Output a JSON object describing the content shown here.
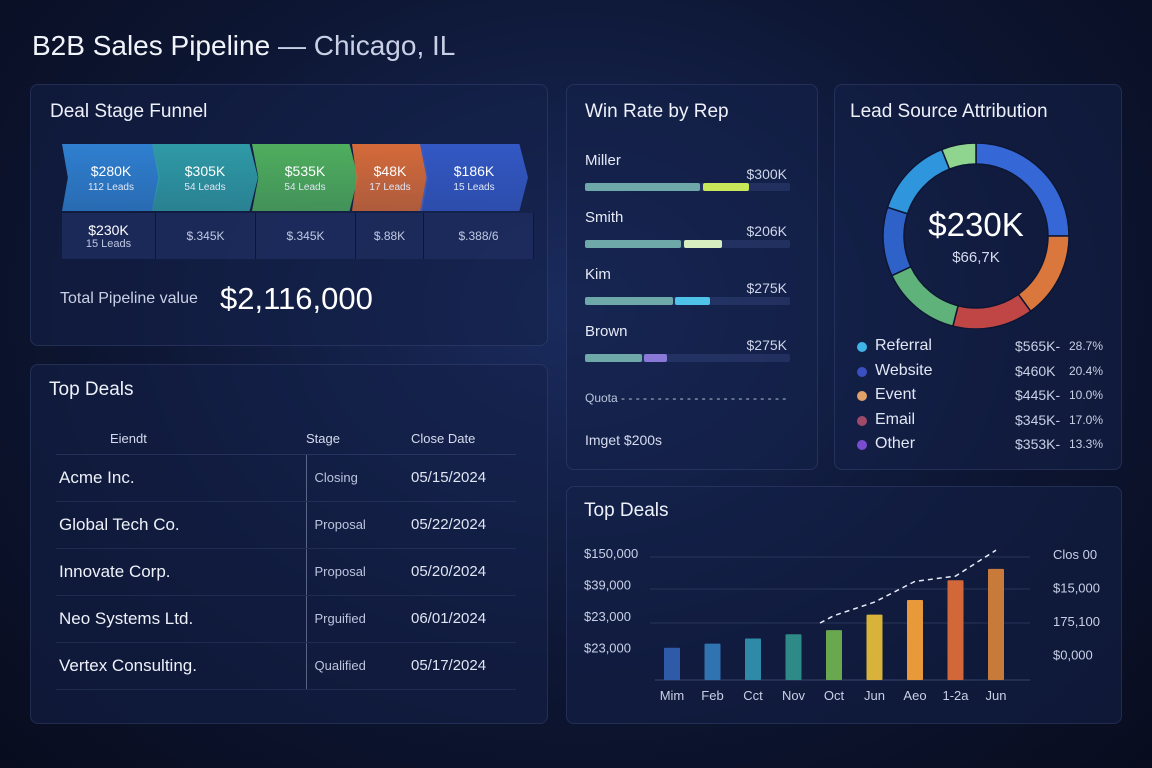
{
  "header": {
    "title": "B2B Sales Pipeline",
    "location": "— Chicago, IL"
  },
  "funnel": {
    "title": "Deal Stage Funnel",
    "stages": [
      {
        "value": "$280K",
        "leads": "112 Leads",
        "color": "#2f7fd0"
      },
      {
        "value": "$305K",
        "leads": "54 Leads",
        "color": "#2f9aa6"
      },
      {
        "value": "$535K",
        "leads": "54 Leads",
        "color": "#4fae5e"
      },
      {
        "value": "$48K",
        "leads": "17 Leads",
        "color": "#d46a3a"
      },
      {
        "value": "$186K",
        "leads": "15 Leads",
        "color": "#3358c4"
      }
    ],
    "row2": [
      {
        "value": "$230K",
        "leads": "15 Leads"
      },
      {
        "value": "$.345K"
      },
      {
        "value": "$.345K"
      },
      {
        "value": "$.88K"
      },
      {
        "value": "$.388/6"
      }
    ],
    "total_label": "Total Pipeline value",
    "total_value": "$2,116,000"
  },
  "winrate": {
    "title": "Win Rate by Rep",
    "reps": [
      {
        "name": "Miller",
        "amount": "$300K",
        "fill_pct": 80,
        "color": "#c8e85a"
      },
      {
        "name": "Smith",
        "amount": "$206K",
        "fill_pct": 67,
        "color": "#d6eec0"
      },
      {
        "name": "Kim",
        "amount": "$275K",
        "fill_pct": 61,
        "color": "#4ec2e8"
      },
      {
        "name": "Brown",
        "amount": "$275K",
        "fill_pct": 40,
        "color": "#8a78d8"
      }
    ],
    "quota_label": "Quota",
    "target_label": "Imget $200s"
  },
  "lead_source": {
    "title": "Lead Source Attribution",
    "center_value": "$230K",
    "center_sub": "$66,7K",
    "segments": [
      {
        "share": 25,
        "color": "#3567d6"
      },
      {
        "share": 15,
        "color": "#d9773c"
      },
      {
        "share": 14,
        "color": "#c04545"
      },
      {
        "share": 14,
        "color": "#5fb37a"
      },
      {
        "share": 12,
        "color": "#2e62c8"
      },
      {
        "share": 14,
        "color": "#2f95dd"
      },
      {
        "share": 6,
        "color": "#8fd48f"
      }
    ],
    "legend": [
      {
        "name": "Referral",
        "value": "$565K-",
        "pct": "28.7%",
        "color": "#3fb2e8"
      },
      {
        "name": "Website",
        "value": "$460K",
        "pct": "20.4%",
        "color": "#3a4fc0"
      },
      {
        "name": "Event",
        "value": "$445K-",
        "pct": "10.0%",
        "color": "#e0a06a"
      },
      {
        "name": "Email",
        "value": "$345K-",
        "pct": "17.0%",
        "color": "#a04a6a"
      },
      {
        "name": "Other",
        "value": "$353K-",
        "pct": "13.3%",
        "color": "#7a4cd0"
      }
    ]
  },
  "top_deals": {
    "title": "Top Deals",
    "columns": [
      "Eiendt",
      "Stage",
      "Close Date"
    ],
    "rows": [
      [
        "Acme Inc.",
        "Closing",
        "05/15/2024"
      ],
      [
        "Global Tech Co.",
        "Proposal",
        "05/22/2024"
      ],
      [
        "Innovate Corp.",
        "Proposal",
        "05/20/2024"
      ],
      [
        "Neo Systems Ltd.",
        "Prguified",
        "06/01/2024"
      ],
      [
        "Vertex Consulting.",
        "Qualified",
        "05/17/2024"
      ]
    ]
  },
  "chart_data": {
    "type": "bar",
    "title": "Top Deals",
    "categories": [
      "Mim",
      "Feb",
      "Cct",
      "Nov",
      "Oct",
      "Jun",
      "Aeo",
      "1-2a",
      "Jun"
    ],
    "values": [
      31,
      35,
      40,
      44,
      48,
      63,
      77,
      96,
      107
    ],
    "line": [
      null,
      null,
      null,
      null,
      62,
      75,
      95,
      100,
      125
    ],
    "ylim": [
      0,
      130
    ],
    "left_ticks": [
      "$150,000",
      "$39,000",
      "$23,000",
      "$23,000"
    ],
    "right_ticks": [
      "Clos 00",
      "$15,000",
      "175,100",
      "$0,000"
    ],
    "colors": [
      "#2f5aa8",
      "#2f73b0",
      "#2f8aa8",
      "#2e8a86",
      "#6aa850",
      "#d8b23a",
      "#e89a3a",
      "#d2683a",
      "#c77a3a"
    ],
    "grid": true
  }
}
